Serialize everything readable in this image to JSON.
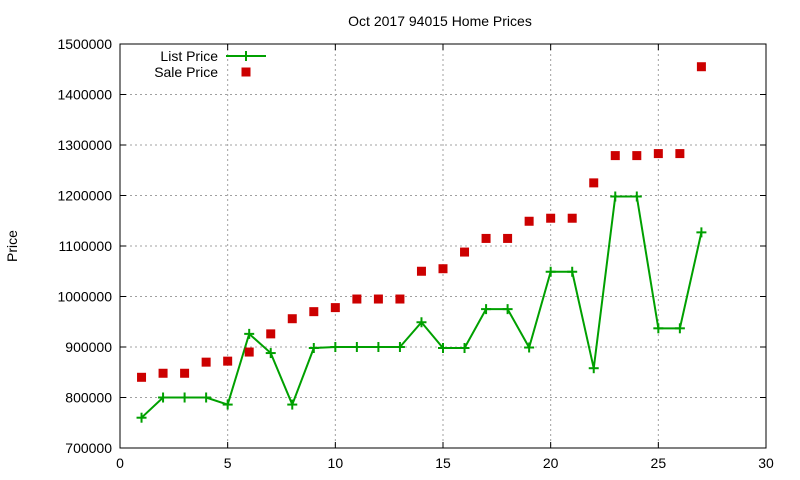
{
  "chart_data": {
    "type": "line",
    "title": "Oct 2017 94015 Home Prices",
    "xlabel": "",
    "ylabel": "Price",
    "xlim": [
      0,
      30
    ],
    "ylim": [
      700000,
      1500000
    ],
    "xticks": [
      0,
      5,
      10,
      15,
      20,
      25,
      30
    ],
    "yticks": [
      700000,
      800000,
      900000,
      1000000,
      1100000,
      1200000,
      1300000,
      1400000,
      1500000
    ],
    "grid": true,
    "legend_position": "top-left",
    "x": [
      1,
      2,
      3,
      4,
      5,
      6,
      7,
      8,
      9,
      10,
      11,
      12,
      13,
      14,
      15,
      16,
      17,
      18,
      19,
      20,
      21,
      22,
      23,
      24,
      25,
      26,
      27
    ],
    "series": [
      {
        "name": "List Price",
        "style": "linespoints",
        "marker": "plus",
        "color": "#00a000",
        "values": [
          760000,
          800000,
          800000,
          800000,
          786000,
          926000,
          888000,
          786000,
          898000,
          900000,
          900000,
          900000,
          900000,
          949000,
          898000,
          898000,
          975000,
          975000,
          899000,
          1049000,
          1049000,
          858000,
          1198000,
          1198000,
          937000,
          937000,
          1127000
        ]
      },
      {
        "name": "Sale Price",
        "style": "points",
        "marker": "square",
        "color": "#cc0000",
        "values": [
          840000,
          848000,
          848000,
          870000,
          872000,
          890000,
          926000,
          956000,
          970000,
          978000,
          995000,
          995000,
          995000,
          1050000,
          1055000,
          1088000,
          1115000,
          1115000,
          1149000,
          1155000,
          1155000,
          1225000,
          1279000,
          1279000,
          1283000,
          1283000,
          1455000
        ]
      }
    ]
  }
}
